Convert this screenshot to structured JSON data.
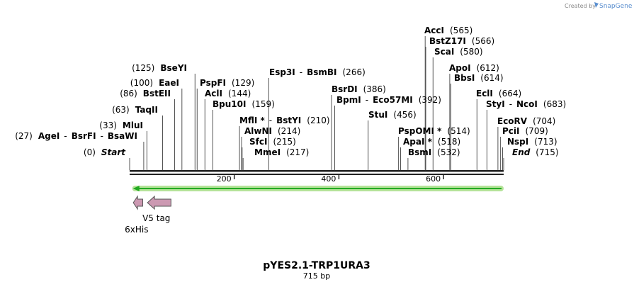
{
  "header": {
    "credit_label": "Created by",
    "brand_name": "SnapGene"
  },
  "plasmid": {
    "name": "pYES2.1-TRP1URA3",
    "length_label": "715 bp"
  },
  "axis": {
    "ticks": [
      {
        "label": "200",
        "bp": 200
      },
      {
        "label": "400",
        "bp": 400
      },
      {
        "label": "600",
        "bp": 600
      }
    ]
  },
  "sites": [
    {
      "key": "acci",
      "line_bp": 565,
      "parts": [
        {
          "t": "AccI",
          "c": "enz"
        },
        {
          "t": "(565)",
          "c": "pos"
        }
      ]
    },
    {
      "key": "bstz17i",
      "line_bp": 566,
      "parts": [
        {
          "t": "BstZ17I",
          "c": "enz"
        },
        {
          "t": "(566)",
          "c": "pos"
        }
      ]
    },
    {
      "key": "scai",
      "line_bp": 580,
      "parts": [
        {
          "t": "ScaI",
          "c": "enz"
        },
        {
          "t": "(580)",
          "c": "pos"
        }
      ]
    },
    {
      "key": "bseyi",
      "line_bp": 125,
      "parts": [
        {
          "t": "(125)",
          "c": "pos"
        },
        {
          "t": "BseYI",
          "c": "enz"
        }
      ]
    },
    {
      "key": "apoi",
      "line_bp": 612,
      "parts": [
        {
          "t": "ApoI",
          "c": "enz"
        },
        {
          "t": "(612)",
          "c": "pos"
        }
      ]
    },
    {
      "key": "esp3i",
      "line_bp": 266,
      "parts": [
        {
          "t": "Esp3I",
          "c": "enz"
        },
        {
          "t": "-",
          "c": "sep"
        },
        {
          "t": "BsmBI",
          "c": "enz"
        },
        {
          "t": "(266)",
          "c": "pos"
        }
      ]
    },
    {
      "key": "bbsi",
      "line_bp": 614,
      "parts": [
        {
          "t": "BbsI",
          "c": "enz"
        },
        {
          "t": "(614)",
          "c": "pos"
        }
      ]
    },
    {
      "key": "eaei",
      "line_bp": 100,
      "parts": [
        {
          "t": "(100)",
          "c": "pos"
        },
        {
          "t": "EaeI",
          "c": "enz"
        }
      ]
    },
    {
      "key": "pspfi",
      "line_bp": 129,
      "parts": [
        {
          "t": "PspFI",
          "c": "enz"
        },
        {
          "t": "(129)",
          "c": "pos"
        }
      ]
    },
    {
      "key": "bsrdi",
      "line_bp": 386,
      "parts": [
        {
          "t": "BsrDI",
          "c": "enz"
        },
        {
          "t": "(386)",
          "c": "pos"
        }
      ]
    },
    {
      "key": "bsteii",
      "line_bp": 86,
      "parts": [
        {
          "t": "(86)",
          "c": "pos"
        },
        {
          "t": "BstEII",
          "c": "enz"
        }
      ]
    },
    {
      "key": "acli",
      "line_bp": 144,
      "parts": [
        {
          "t": "AclI",
          "c": "enz"
        },
        {
          "t": "(144)",
          "c": "pos"
        }
      ]
    },
    {
      "key": "ecli",
      "line_bp": 664,
      "parts": [
        {
          "t": "EclI",
          "c": "enz"
        },
        {
          "t": "(664)",
          "c": "pos"
        }
      ]
    },
    {
      "key": "bpmi",
      "line_bp": 392,
      "parts": [
        {
          "t": "BpmI",
          "c": "enz"
        },
        {
          "t": "-",
          "c": "sep"
        },
        {
          "t": "Eco57MI",
          "c": "enz"
        },
        {
          "t": "(392)",
          "c": "pos"
        }
      ]
    },
    {
      "key": "bpu10i",
      "line_bp": 159,
      "parts": [
        {
          "t": "Bpu10I",
          "c": "enz"
        },
        {
          "t": "(159)",
          "c": "pos"
        }
      ]
    },
    {
      "key": "styi",
      "line_bp": 683,
      "parts": [
        {
          "t": "StyI",
          "c": "enz"
        },
        {
          "t": "-",
          "c": "sep"
        },
        {
          "t": "NcoI",
          "c": "enz"
        },
        {
          "t": "(683)",
          "c": "pos"
        }
      ]
    },
    {
      "key": "taqii",
      "line_bp": 63,
      "parts": [
        {
          "t": "(63)",
          "c": "pos"
        },
        {
          "t": "TaqII",
          "c": "enz"
        }
      ]
    },
    {
      "key": "stui",
      "line_bp": 456,
      "parts": [
        {
          "t": "StuI",
          "c": "enz"
        },
        {
          "t": "(456)",
          "c": "pos"
        }
      ]
    },
    {
      "key": "mfli",
      "line_bp": 210,
      "parts": [
        {
          "t": "MflI *",
          "c": "enz"
        },
        {
          "t": "-",
          "c": "sep"
        },
        {
          "t": "BstYI",
          "c": "enz"
        },
        {
          "t": "(210)",
          "c": "pos"
        }
      ]
    },
    {
      "key": "ecorv",
      "line_bp": 704,
      "parts": [
        {
          "t": "EcoRV",
          "c": "enz"
        },
        {
          "t": "(704)",
          "c": "pos"
        }
      ]
    },
    {
      "key": "mlui",
      "line_bp": 33,
      "parts": [
        {
          "t": "(33)",
          "c": "pos"
        },
        {
          "t": "MluI",
          "c": "enz"
        }
      ]
    },
    {
      "key": "alwni",
      "line_bp": 214,
      "parts": [
        {
          "t": "AlwNI",
          "c": "enz"
        },
        {
          "t": "(214)",
          "c": "pos"
        }
      ]
    },
    {
      "key": "pspomi",
      "line_bp": 514,
      "parts": [
        {
          "t": "PspOMI *",
          "c": "enz"
        },
        {
          "t": "(514)",
          "c": "pos"
        }
      ]
    },
    {
      "key": "pcii",
      "line_bp": 709,
      "parts": [
        {
          "t": "PciI",
          "c": "enz"
        },
        {
          "t": "(709)",
          "c": "pos"
        }
      ]
    },
    {
      "key": "agei",
      "line_bp": 27,
      "parts": [
        {
          "t": "(27)",
          "c": "pos"
        },
        {
          "t": "AgeI",
          "c": "enz"
        },
        {
          "t": "-",
          "c": "sep"
        },
        {
          "t": "BsrFI",
          "c": "enz"
        },
        {
          "t": "-",
          "c": "sep"
        },
        {
          "t": "BsaWI",
          "c": "enz"
        }
      ]
    },
    {
      "key": "sfci",
      "line_bp": 215,
      "parts": [
        {
          "t": "SfcI",
          "c": "enz"
        },
        {
          "t": "(215)",
          "c": "pos"
        }
      ]
    },
    {
      "key": "apai",
      "line_bp": 518,
      "parts": [
        {
          "t": "ApaI *",
          "c": "enz"
        },
        {
          "t": "(518)",
          "c": "pos"
        }
      ]
    },
    {
      "key": "nspi",
      "line_bp": 713,
      "parts": [
        {
          "t": "NspI",
          "c": "enz"
        },
        {
          "t": "(713)",
          "c": "pos"
        }
      ]
    },
    {
      "key": "start",
      "line_bp": 0,
      "parts": [
        {
          "t": "(0)",
          "c": "pos"
        },
        {
          "t": "Start",
          "c": "ital"
        }
      ]
    },
    {
      "key": "mmei",
      "line_bp": 217,
      "parts": [
        {
          "t": "MmeI",
          "c": "enz"
        },
        {
          "t": "(217)",
          "c": "pos"
        }
      ]
    },
    {
      "key": "bsmi",
      "line_bp": 532,
      "parts": [
        {
          "t": "BsmI",
          "c": "enz"
        },
        {
          "t": "(532)",
          "c": "pos"
        }
      ]
    },
    {
      "key": "end",
      "line_bp": 715,
      "parts": [
        {
          "t": "End",
          "c": "ital"
        },
        {
          "t": "(715)",
          "c": "pos"
        }
      ]
    }
  ],
  "features": [
    {
      "key": "6xhis",
      "label": "6xHis",
      "start_bp": 7,
      "end_bp": 25,
      "direction": "reverse",
      "color": "#cc99b2"
    },
    {
      "key": "v5-tag",
      "label": "V5 tag",
      "start_bp": 34,
      "end_bp": 79,
      "direction": "reverse",
      "color": "#cc99b2"
    }
  ],
  "orf": {
    "start_bp": 5,
    "end_bp": 715,
    "direction": "reverse",
    "color": "#22aa22",
    "glow": "#b6e39a"
  }
}
